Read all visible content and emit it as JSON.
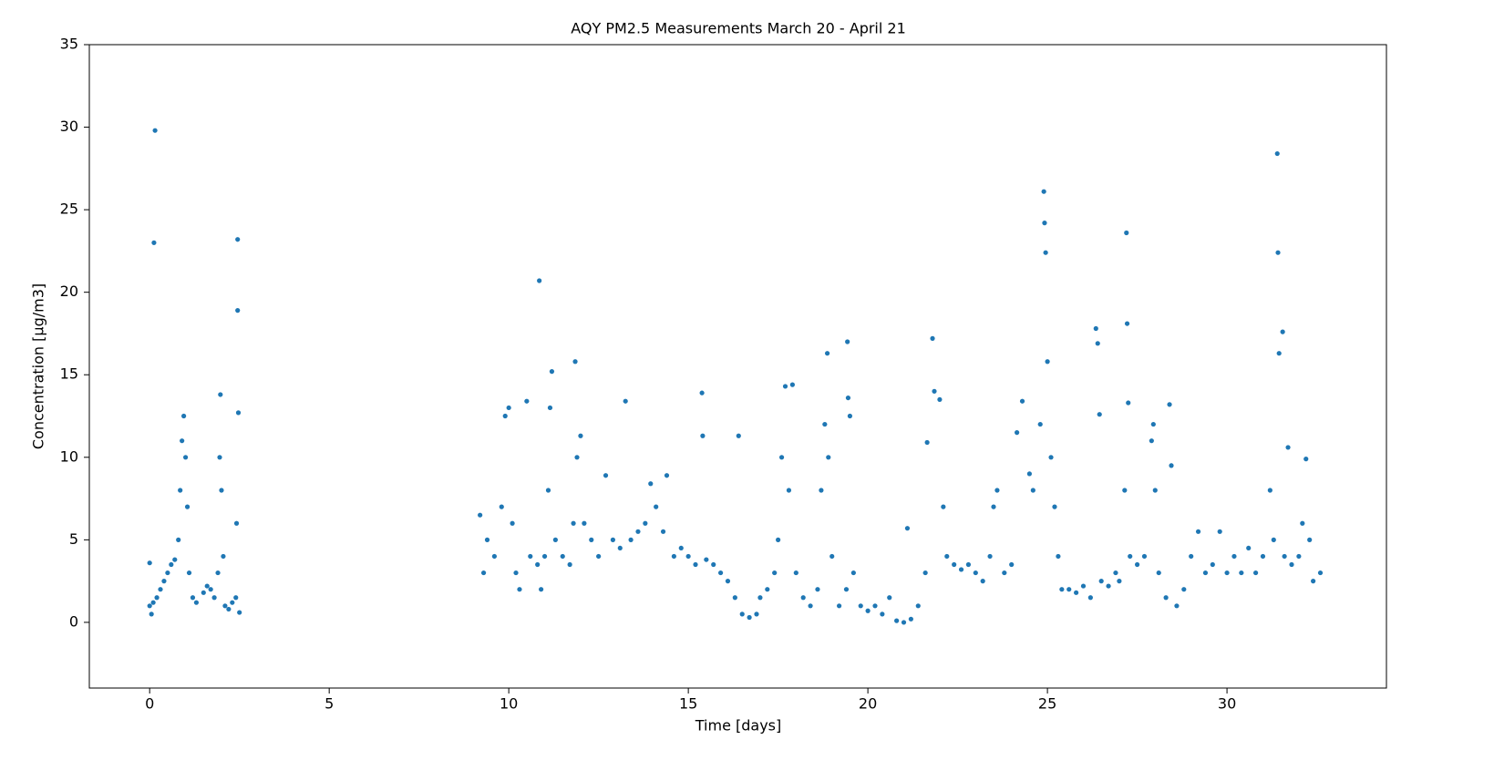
{
  "chart_data": {
    "type": "scatter",
    "title": "AQY PM2.5 Measurements March 20 - April 21",
    "x_label": "Time [days]",
    "y_label": "Concentration [μg/m3]",
    "color": "#1f77b4",
    "xlim": [
      -1.68,
      34.44
    ],
    "ylim": [
      -3.98,
      35
    ],
    "xticks": [
      0,
      5,
      10,
      15,
      20,
      25,
      30
    ],
    "yticks": [
      0,
      5,
      10,
      15,
      20,
      25,
      30,
      35
    ],
    "grid": false,
    "x": [
      0.0,
      0.0,
      0.05,
      0.1,
      0.15,
      0.12,
      0.2,
      0.3,
      0.4,
      0.5,
      0.6,
      0.7,
      0.8,
      0.85,
      0.9,
      0.95,
      1.0,
      1.05,
      1.1,
      1.2,
      1.3,
      1.5,
      1.6,
      1.7,
      1.8,
      1.9,
      1.95,
      1.97,
      2.0,
      2.05,
      2.1,
      2.2,
      2.3,
      2.4,
      2.42,
      2.45,
      2.45,
      2.47,
      2.5,
      9.2,
      9.3,
      9.4,
      9.6,
      9.8,
      9.9,
      10.0,
      10.1,
      10.2,
      10.3,
      10.5,
      10.6,
      10.8,
      10.85,
      10.9,
      11.0,
      11.1,
      11.15,
      11.2,
      11.3,
      11.5,
      11.7,
      11.8,
      11.85,
      11.9,
      12.0,
      12.1,
      12.3,
      12.5,
      12.7,
      12.9,
      13.1,
      13.25,
      13.4,
      13.6,
      13.8,
      13.95,
      14.1,
      14.3,
      14.4,
      14.6,
      14.8,
      15.0,
      15.2,
      15.38,
      15.4,
      15.5,
      15.7,
      15.9,
      16.1,
      16.3,
      16.4,
      16.5,
      16.7,
      16.9,
      17.0,
      17.2,
      17.4,
      17.5,
      17.6,
      17.7,
      17.8,
      17.9,
      18.0,
      18.2,
      18.4,
      18.6,
      18.7,
      18.8,
      18.87,
      18.9,
      19.0,
      19.2,
      19.4,
      19.43,
      19.45,
      19.5,
      19.6,
      19.8,
      20.0,
      20.2,
      20.4,
      20.6,
      20.8,
      21.0,
      21.1,
      21.2,
      21.4,
      21.6,
      21.65,
      21.8,
      21.85,
      22.0,
      22.1,
      22.2,
      22.4,
      22.6,
      22.8,
      23.0,
      23.2,
      23.4,
      23.5,
      23.6,
      23.8,
      24.0,
      24.15,
      24.3,
      24.5,
      24.6,
      24.8,
      24.9,
      24.92,
      24.95,
      25.0,
      25.1,
      25.2,
      25.3,
      25.4,
      25.6,
      25.8,
      26.0,
      26.2,
      26.35,
      26.4,
      26.45,
      26.5,
      26.7,
      26.9,
      27.0,
      27.15,
      27.2,
      27.22,
      27.25,
      27.3,
      27.5,
      27.7,
      27.9,
      27.95,
      28.0,
      28.1,
      28.3,
      28.4,
      28.45,
      28.6,
      28.8,
      29.0,
      29.2,
      29.4,
      29.6,
      29.8,
      30.0,
      30.2,
      30.4,
      30.6,
      30.8,
      31.0,
      31.2,
      31.3,
      31.4,
      31.42,
      31.45,
      31.55,
      31.6,
      31.7,
      31.8,
      32.0,
      32.1,
      32.2,
      32.3,
      32.4,
      32.6
    ],
    "values": [
      1.0,
      3.6,
      0.5,
      1.2,
      29.8,
      23.0,
      1.5,
      2.0,
      2.5,
      3.0,
      3.5,
      3.8,
      5,
      8,
      11,
      12.5,
      10,
      7,
      3,
      1.5,
      1.2,
      1.8,
      2.2,
      2.0,
      1.5,
      3,
      10,
      13.8,
      8,
      4,
      1.0,
      0.8,
      1.2,
      1.5,
      6,
      23.2,
      18.9,
      12.7,
      0.6,
      6.5,
      3,
      5,
      4,
      7,
      12.5,
      13,
      6,
      3,
      2,
      13.4,
      4,
      3.5,
      20.7,
      2,
      4,
      8,
      13,
      15.2,
      5,
      4,
      3.5,
      6,
      15.8,
      10,
      11.3,
      6,
      5,
      4,
      8.9,
      5,
      4.5,
      13.4,
      5,
      5.5,
      6,
      8.4,
      7,
      5.5,
      8.9,
      4,
      4.5,
      4,
      3.5,
      13.9,
      11.3,
      3.8,
      3.5,
      3,
      2.5,
      1.5,
      11.3,
      0.5,
      0.3,
      0.5,
      1.5,
      2,
      3,
      5,
      10,
      14.3,
      8,
      14.4,
      3,
      1.5,
      1,
      2,
      8,
      12,
      16.3,
      10,
      4,
      1.0,
      2,
      17,
      13.6,
      12.5,
      3,
      1,
      0.7,
      1,
      0.5,
      1.5,
      0.1,
      0,
      5.7,
      0.2,
      1,
      3,
      10.9,
      17.2,
      14,
      13.5,
      7,
      4,
      3.5,
      3.2,
      3.5,
      3,
      2.5,
      4,
      7,
      8,
      3,
      3.5,
      11.5,
      13.4,
      9,
      8,
      12,
      26.1,
      24.2,
      22.4,
      15.8,
      10,
      7,
      4,
      2,
      2,
      1.8,
      2.2,
      1.5,
      17.8,
      16.9,
      12.6,
      2.5,
      2.2,
      3,
      2.5,
      8,
      23.6,
      18.1,
      13.3,
      4,
      3.5,
      4,
      11,
      12,
      8,
      3,
      1.5,
      13.2,
      9.5,
      1,
      2,
      4,
      5.5,
      3,
      3.5,
      5.5,
      3,
      4,
      3,
      4.5,
      3,
      4,
      8,
      5,
      28.4,
      22.4,
      16.3,
      17.6,
      4,
      10.6,
      3.5,
      4,
      6,
      9.9,
      5,
      2.5,
      3
    ]
  }
}
